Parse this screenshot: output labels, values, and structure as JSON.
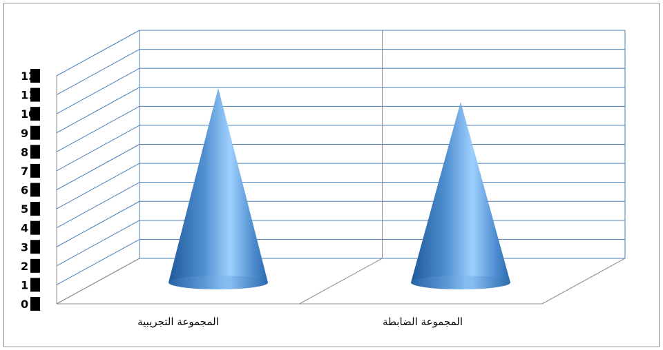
{
  "chart_data": {
    "type": "bar",
    "style": "3d-cone",
    "categories": [
      "المجموعة التجريبية",
      "المجموعة الضابطة"
    ],
    "series": [
      {
        "values": [
          11.2,
          10.4
        ]
      }
    ],
    "yticks": [
      "0",
      "1",
      "2",
      "3",
      "4",
      "5",
      "6",
      "7",
      "8",
      "9",
      "10",
      "11",
      "12"
    ],
    "ylim": [
      0,
      12
    ],
    "grid": true,
    "legend": "none",
    "colors": {
      "cone": "#4f8fd0",
      "cone_highlight": "#9fd0ff",
      "cone_shadow": "#1f5a9a",
      "grid": "#4a7fb5",
      "axis": "#8c8c8c"
    }
  }
}
